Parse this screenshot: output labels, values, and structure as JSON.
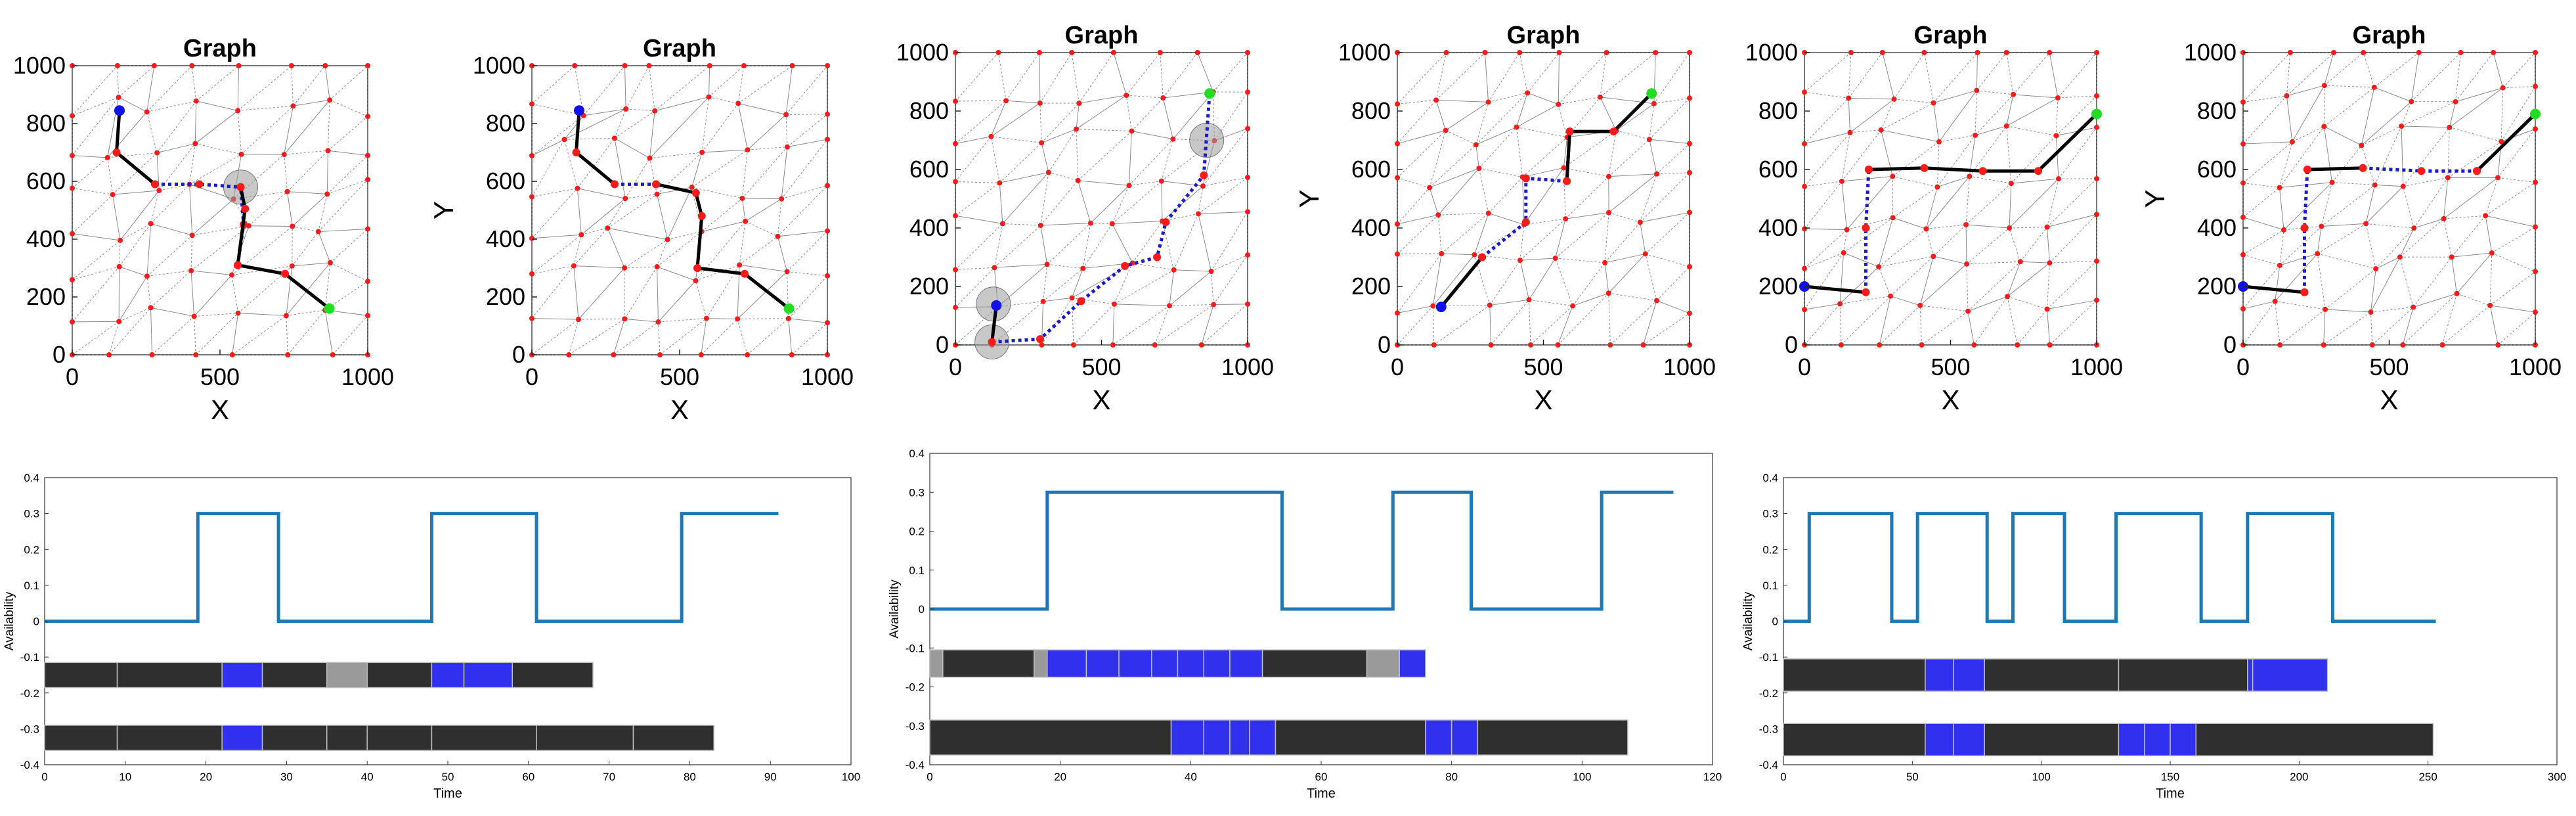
{
  "colors": {
    "node": "#ff1a1a",
    "start": "#1010ee",
    "goal": "#22dd22",
    "edge": "#6f6f6f",
    "path_solid": "#000000",
    "path_dotted": "#1a1acc",
    "availability": "#1f77b4",
    "bar_dark": "#2f2f2f",
    "bar_blue": "#3030ee",
    "bar_gray": "#9a9a9a"
  },
  "chart_data": [
    {
      "type": "scatter",
      "title": "Graph",
      "xlabel": "X",
      "ylabel": "",
      "xlim": [
        0,
        1000
      ],
      "ylim": [
        0,
        1000
      ],
      "xticks": [
        0,
        500,
        1000
      ],
      "yticks": [
        0,
        200,
        400,
        600,
        800,
        1000
      ],
      "start": [
        160,
        845
      ],
      "goal": [
        870,
        160
      ],
      "highlight": [
        [
          570,
          580
        ]
      ],
      "path_solid": [
        [
          160,
          845
        ],
        [
          150,
          700
        ],
        [
          280,
          590
        ]
      ],
      "path_dotted": [
        [
          280,
          590
        ],
        [
          430,
          590
        ],
        [
          570,
          580
        ]
      ],
      "path_solid2": [
        [
          570,
          580
        ],
        [
          585,
          505
        ],
        [
          560,
          310
        ],
        [
          720,
          280
        ],
        [
          870,
          160
        ]
      ],
      "path_dotted2": [
        [
          560,
          310
        ],
        [
          580,
          450
        ],
        [
          570,
          580
        ]
      ],
      "seed": 11
    },
    {
      "type": "scatter",
      "title": "Graph",
      "xlabel": "X",
      "ylabel": "Y",
      "xlim": [
        0,
        1000
      ],
      "ylim": [
        0,
        1000
      ],
      "xticks": [
        0,
        500,
        1000
      ],
      "yticks": [
        0,
        200,
        400,
        600,
        800,
        1000
      ],
      "start": [
        160,
        845
      ],
      "goal": [
        870,
        160
      ],
      "highlight": [],
      "path_solid": [
        [
          160,
          845
        ],
        [
          150,
          700
        ],
        [
          280,
          590
        ]
      ],
      "path_dotted": [
        [
          280,
          590
        ],
        [
          420,
          590
        ]
      ],
      "path_solid2": [
        [
          420,
          590
        ],
        [
          555,
          560
        ],
        [
          575,
          480
        ],
        [
          560,
          300
        ],
        [
          720,
          280
        ],
        [
          870,
          160
        ]
      ],
      "path_dotted2": [],
      "seed": 23
    },
    {
      "type": "scatter",
      "title": "Graph",
      "xlabel": "X",
      "ylabel": "",
      "xlim": [
        0,
        1000
      ],
      "ylim": [
        0,
        1000
      ],
      "xticks": [
        0,
        500,
        1000
      ],
      "yticks": [
        0,
        200,
        400,
        600,
        800,
        1000
      ],
      "start": [
        140,
        135
      ],
      "goal": [
        870,
        860
      ],
      "highlight": [
        [
          130,
          140
        ],
        [
          125,
          10
        ],
        [
          860,
          700
        ]
      ],
      "path_solid": [
        [
          140,
          135
        ],
        [
          125,
          10
        ]
      ],
      "path_dotted": [
        [
          125,
          10
        ],
        [
          290,
          20
        ],
        [
          430,
          150
        ],
        [
          580,
          270
        ],
        [
          690,
          300
        ],
        [
          720,
          420
        ],
        [
          850,
          580
        ],
        [
          870,
          860
        ]
      ],
      "path_solid2": [],
      "path_dotted2": [],
      "seed": 37
    },
    {
      "type": "scatter",
      "title": "Graph",
      "xlabel": "X",
      "ylabel": "Y",
      "xlim": [
        0,
        1000
      ],
      "ylim": [
        0,
        1000
      ],
      "xticks": [
        0,
        500,
        1000
      ],
      "yticks": [
        0,
        200,
        400,
        600,
        800,
        1000
      ],
      "start": [
        150,
        130
      ],
      "goal": [
        870,
        860
      ],
      "highlight": [],
      "path_solid": [
        [
          150,
          130
        ],
        [
          290,
          300
        ]
      ],
      "path_dotted": [
        [
          290,
          300
        ],
        [
          440,
          420
        ],
        [
          440,
          570
        ],
        [
          580,
          560
        ],
        [
          590,
          730
        ]
      ],
      "path_solid2": [
        [
          580,
          560
        ],
        [
          590,
          730
        ],
        [
          740,
          730
        ],
        [
          870,
          860
        ]
      ],
      "path_dotted2": [],
      "seed": 41
    },
    {
      "type": "scatter",
      "title": "Graph",
      "xlabel": "X",
      "ylabel": "",
      "xlim": [
        0,
        1000
      ],
      "ylim": [
        0,
        1000
      ],
      "xticks": [
        0,
        500,
        1000
      ],
      "yticks": [
        0,
        200,
        400,
        600,
        800,
        1000
      ],
      "start": [
        0,
        200
      ],
      "goal": [
        1000,
        790
      ],
      "highlight": [],
      "path_solid": [
        [
          0,
          200
        ],
        [
          210,
          180
        ]
      ],
      "path_dotted": [
        [
          210,
          180
        ],
        [
          210,
          400
        ],
        [
          220,
          600
        ]
      ],
      "path_solid2": [
        [
          220,
          600
        ],
        [
          410,
          605
        ],
        [
          610,
          595
        ],
        [
          800,
          595
        ],
        [
          1000,
          790
        ]
      ],
      "path_dotted2": [],
      "seed": 53
    },
    {
      "type": "scatter",
      "title": "Graph",
      "xlabel": "X",
      "ylabel": "Y",
      "xlim": [
        0,
        1000
      ],
      "ylim": [
        0,
        1000
      ],
      "xticks": [
        0,
        500,
        1000
      ],
      "yticks": [
        0,
        200,
        400,
        600,
        800,
        1000
      ],
      "start": [
        0,
        200
      ],
      "goal": [
        1000,
        790
      ],
      "highlight": [],
      "path_solid": [
        [
          0,
          200
        ],
        [
          210,
          180
        ]
      ],
      "path_dotted": [
        [
          210,
          180
        ],
        [
          210,
          400
        ],
        [
          220,
          600
        ]
      ],
      "path_solid2": [
        [
          220,
          600
        ],
        [
          410,
          605
        ]
      ],
      "path_dotted3": [
        [
          410,
          605
        ],
        [
          610,
          595
        ],
        [
          800,
          595
        ]
      ],
      "path_solid3": [
        [
          800,
          595
        ],
        [
          1000,
          790
        ]
      ],
      "seed": 67
    },
    {
      "type": "line",
      "xlabel": "Time",
      "ylabel": "Availability",
      "xlim": [
        0,
        100
      ],
      "ylim": [
        -0.4,
        0.4
      ],
      "xticks": [
        0,
        10,
        20,
        30,
        40,
        50,
        60,
        70,
        80,
        90,
        100
      ],
      "yticks": [
        0.4,
        0.3,
        0.2,
        0.1,
        0,
        -0.1,
        -0.2,
        -0.3,
        -0.4
      ],
      "ytick_labels": [
        "0.4",
        "0.3",
        "0.2",
        "0.1",
        "0",
        "-0.1",
        "-0.2",
        "-0.3",
        "-0.4"
      ],
      "series_x": [
        0,
        19,
        19,
        29,
        29,
        48,
        48,
        61,
        61,
        79,
        79,
        91
      ],
      "series_y": [
        0,
        0,
        0.3,
        0.3,
        0,
        0,
        0.3,
        0.3,
        0,
        0,
        0.3,
        0.3
      ],
      "bars": [
        {
          "y": -0.15,
          "height": 0.07,
          "end": 68,
          "segments": [
            {
              "start": 0,
              "end": 9,
              "kind": "dark"
            },
            {
              "start": 9,
              "end": 22,
              "kind": "dark"
            },
            {
              "start": 22,
              "end": 27,
              "kind": "blue"
            },
            {
              "start": 27,
              "end": 35,
              "kind": "dark"
            },
            {
              "start": 35,
              "end": 40,
              "kind": "gray"
            },
            {
              "start": 40,
              "end": 48,
              "kind": "dark"
            },
            {
              "start": 48,
              "end": 52,
              "kind": "blue"
            },
            {
              "start": 52,
              "end": 58,
              "kind": "blue"
            },
            {
              "start": 58,
              "end": 68,
              "kind": "dark"
            }
          ]
        },
        {
          "y": -0.325,
          "height": 0.07,
          "end": 83,
          "segments": [
            {
              "start": 0,
              "end": 9,
              "kind": "dark"
            },
            {
              "start": 9,
              "end": 22,
              "kind": "dark"
            },
            {
              "start": 22,
              "end": 27,
              "kind": "blue"
            },
            {
              "start": 27,
              "end": 35,
              "kind": "dark"
            },
            {
              "start": 35,
              "end": 40,
              "kind": "dark"
            },
            {
              "start": 40,
              "end": 48,
              "kind": "dark"
            },
            {
              "start": 48,
              "end": 61,
              "kind": "dark"
            },
            {
              "start": 61,
              "end": 73,
              "kind": "dark"
            },
            {
              "start": 73,
              "end": 83,
              "kind": "dark"
            }
          ]
        }
      ]
    },
    {
      "type": "line",
      "xlabel": "Time",
      "ylabel": "Availability",
      "xlim": [
        0,
        120
      ],
      "ylim": [
        -0.4,
        0.4
      ],
      "xticks": [
        0,
        20,
        40,
        60,
        80,
        100,
        120
      ],
      "yticks": [
        0.4,
        0.3,
        0.2,
        0.1,
        0,
        -0.1,
        -0.2,
        -0.3,
        -0.4
      ],
      "ytick_labels": [
        "0.4",
        "0.3",
        "0.2",
        "0.1",
        "0",
        "-0.1",
        "-0.2",
        "-0.3",
        "-0.4"
      ],
      "series_x": [
        0,
        18,
        18,
        54,
        54,
        71,
        71,
        83,
        83,
        103,
        103,
        114
      ],
      "series_y": [
        0,
        0,
        0.3,
        0.3,
        0,
        0,
        0.3,
        0.3,
        0,
        0,
        0.3,
        0.3
      ],
      "bars": [
        {
          "y": -0.14,
          "height": 0.07,
          "end": 76,
          "segments": [
            {
              "start": 0,
              "end": 2,
              "kind": "gray"
            },
            {
              "start": 2,
              "end": 16,
              "kind": "dark"
            },
            {
              "start": 16,
              "end": 18,
              "kind": "gray"
            },
            {
              "start": 18,
              "end": 24,
              "kind": "blue"
            },
            {
              "start": 24,
              "end": 29,
              "kind": "blue"
            },
            {
              "start": 29,
              "end": 34,
              "kind": "blue"
            },
            {
              "start": 34,
              "end": 38,
              "kind": "blue"
            },
            {
              "start": 38,
              "end": 42,
              "kind": "blue"
            },
            {
              "start": 42,
              "end": 46,
              "kind": "blue"
            },
            {
              "start": 46,
              "end": 51,
              "kind": "blue"
            },
            {
              "start": 51,
              "end": 67,
              "kind": "dark"
            },
            {
              "start": 67,
              "end": 72,
              "kind": "gray"
            },
            {
              "start": 72,
              "end": 76,
              "kind": "blue"
            }
          ]
        },
        {
          "y": -0.33,
          "height": 0.09,
          "end": 107,
          "segments": [
            {
              "start": 0,
              "end": 37,
              "kind": "dark"
            },
            {
              "start": 37,
              "end": 42,
              "kind": "blue"
            },
            {
              "start": 42,
              "end": 46,
              "kind": "blue"
            },
            {
              "start": 46,
              "end": 49,
              "kind": "blue"
            },
            {
              "start": 49,
              "end": 53,
              "kind": "blue"
            },
            {
              "start": 53,
              "end": 76,
              "kind": "dark"
            },
            {
              "start": 76,
              "end": 80,
              "kind": "blue"
            },
            {
              "start": 80,
              "end": 84,
              "kind": "blue"
            },
            {
              "start": 84,
              "end": 107,
              "kind": "dark"
            }
          ]
        }
      ]
    },
    {
      "type": "line",
      "xlabel": "Time",
      "ylabel": "Availability",
      "xlim": [
        0,
        300
      ],
      "ylim": [
        -0.4,
        0.4
      ],
      "xticks": [
        0,
        50,
        100,
        150,
        200,
        250,
        300
      ],
      "yticks": [
        0.4,
        0.3,
        0.2,
        0.1,
        0,
        -0.1,
        -0.2,
        -0.3,
        -0.4
      ],
      "ytick_labels": [
        "0.4",
        "0.3",
        "0.2",
        "0.1",
        "0",
        "-0.1",
        "-0.2",
        "-0.3",
        "-0.4"
      ],
      "series_x": [
        0,
        10,
        10,
        42,
        42,
        52,
        52,
        79,
        79,
        89,
        89,
        109,
        109,
        129,
        129,
        162,
        162,
        180,
        180,
        213,
        213,
        253
      ],
      "series_y": [
        0,
        0,
        0.3,
        0.3,
        0,
        0,
        0.3,
        0.3,
        0,
        0,
        0.3,
        0.3,
        0,
        0,
        0.3,
        0.3,
        0,
        0,
        0.3,
        0.3,
        0,
        0
      ],
      "bars": [
        {
          "y": -0.15,
          "height": 0.09,
          "end": 211,
          "segments": [
            {
              "start": 0,
              "end": 55,
              "kind": "dark"
            },
            {
              "start": 55,
              "end": 66,
              "kind": "blue"
            },
            {
              "start": 66,
              "end": 78,
              "kind": "blue"
            },
            {
              "start": 78,
              "end": 130,
              "kind": "dark"
            },
            {
              "start": 130,
              "end": 180,
              "kind": "dark"
            },
            {
              "start": 180,
              "end": 182,
              "kind": "blue"
            },
            {
              "start": 182,
              "end": 211,
              "kind": "blue"
            }
          ]
        },
        {
          "y": -0.33,
          "height": 0.09,
          "end": 252,
          "segments": [
            {
              "start": 0,
              "end": 55,
              "kind": "dark"
            },
            {
              "start": 55,
              "end": 66,
              "kind": "blue"
            },
            {
              "start": 66,
              "end": 78,
              "kind": "blue"
            },
            {
              "start": 78,
              "end": 130,
              "kind": "dark"
            },
            {
              "start": 130,
              "end": 140,
              "kind": "blue"
            },
            {
              "start": 140,
              "end": 150,
              "kind": "blue"
            },
            {
              "start": 150,
              "end": 160,
              "kind": "blue"
            },
            {
              "start": 160,
              "end": 252,
              "kind": "dark"
            }
          ]
        }
      ]
    }
  ]
}
